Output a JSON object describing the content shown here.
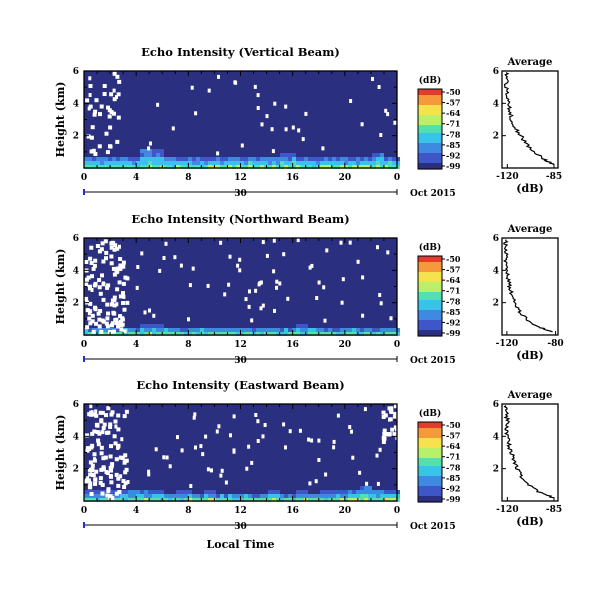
{
  "figure": {
    "panels": [
      {
        "title": "Echo Intensity (Vertical Beam)",
        "avg_title": "Average"
      },
      {
        "title": "Echo Intensity (Northward Beam)",
        "avg_title": "Average"
      },
      {
        "title": "Echo Intensity (Eastward Beam)",
        "avg_title": "Average"
      }
    ],
    "ylabel": "Height (km)",
    "xlabel": "Local Time",
    "date_label": "Oct 2015",
    "day_label": "30",
    "colorbar_unit": "(dB)",
    "avg_xlabel": "(dB)"
  },
  "chart_data": [
    {
      "type": "heatmap",
      "title": "Echo Intensity (Vertical Beam)",
      "ylabel": "Height (km)",
      "x_ticks": [
        "0",
        "4",
        "8",
        "12",
        "16",
        "20",
        "0"
      ],
      "xlim": [
        0,
        24
      ],
      "y_ticks": [
        "2",
        "4",
        "6"
      ],
      "ylim": [
        0,
        6
      ],
      "colorbar": {
        "label": "(dB)",
        "ticks": [
          "-50",
          "-57",
          "-64",
          "-71",
          "-78",
          "-85",
          "-92",
          "-99"
        ],
        "range": [
          -99,
          -50
        ]
      },
      "colorscale": [
        "#2b2f80",
        "#3f56c8",
        "#3f8ae0",
        "#38c4e8",
        "#53e0b0",
        "#b9f06a",
        "#f6e24c",
        "#f59a3a",
        "#e23c2c"
      ],
      "background_value_db": -99,
      "low_layer_top_km": [
        0.9,
        0.9,
        0.9,
        0.8,
        1.3,
        1.2,
        0.8,
        0.8,
        0.8,
        0.8,
        0.8,
        0.9,
        0.9,
        0.8,
        0.9,
        1.0,
        0.9,
        0.8,
        0.8,
        0.8,
        0.8,
        0.9,
        1.0,
        0.9
      ],
      "profile": {
        "title": "Average",
        "xlabel": "(dB)",
        "x_ticks": [
          "-120",
          "-85"
        ],
        "xlim": [
          -124,
          -82
        ],
        "ylim": [
          0,
          6
        ],
        "y_ticks": [
          "2",
          "4",
          "6"
        ],
        "height_km": [
          0.2,
          0.5,
          1.0,
          1.5,
          2.0,
          2.5,
          3.0,
          3.5,
          4.0,
          4.5,
          5.0,
          5.5,
          5.9
        ],
        "db": [
          -85,
          -92,
          -100,
          -106,
          -110,
          -114,
          -117,
          -118,
          -119,
          -120,
          -121,
          -120,
          -121
        ]
      }
    },
    {
      "type": "heatmap",
      "title": "Echo Intensity (Northward Beam)",
      "ylabel": "Height (km)",
      "x_ticks": [
        "0",
        "4",
        "8",
        "12",
        "16",
        "20",
        "0"
      ],
      "xlim": [
        0,
        24
      ],
      "y_ticks": [
        "2",
        "4",
        "6"
      ],
      "ylim": [
        0,
        6
      ],
      "colorbar": {
        "label": "(dB)",
        "ticks": [
          "-50",
          "-57",
          "-64",
          "-71",
          "-78",
          "-85",
          "-92",
          "-99"
        ],
        "range": [
          -99,
          -50
        ]
      },
      "colorscale": [
        "#2b2f80",
        "#3f56c8",
        "#3f8ae0",
        "#38c4e8",
        "#53e0b0",
        "#b9f06a",
        "#f6e24c",
        "#f59a3a",
        "#e23c2c"
      ],
      "background_value_db": -99,
      "low_layer_top_km": [
        0.6,
        0.6,
        0.6,
        0.6,
        0.7,
        0.7,
        0.6,
        0.6,
        0.6,
        0.6,
        0.6,
        0.6,
        0.6,
        0.6,
        0.6,
        0.6,
        0.7,
        0.6,
        0.6,
        0.6,
        0.6,
        0.6,
        0.6,
        0.6
      ],
      "profile": {
        "title": "Average",
        "xlabel": "(dB)",
        "x_ticks": [
          "-120",
          "-80"
        ],
        "xlim": [
          -124,
          -78
        ],
        "ylim": [
          0,
          6
        ],
        "y_ticks": [
          "2",
          "4",
          "6"
        ],
        "height_km": [
          0.2,
          0.5,
          1.0,
          1.5,
          2.0,
          2.5,
          3.0,
          3.5,
          4.0,
          4.5,
          5.0,
          5.5,
          5.9
        ],
        "db": [
          -82,
          -95,
          -104,
          -110,
          -113,
          -116,
          -118,
          -119,
          -120,
          -121,
          -120,
          -121,
          -121
        ]
      }
    },
    {
      "type": "heatmap",
      "title": "Echo Intensity (Eastward Beam)",
      "ylabel": "Height (km)",
      "xlabel": "Local Time",
      "x_ticks": [
        "0",
        "4",
        "8",
        "12",
        "16",
        "20",
        "0"
      ],
      "xlim": [
        0,
        24
      ],
      "y_ticks": [
        "2",
        "4",
        "6"
      ],
      "ylim": [
        0,
        6
      ],
      "colorbar": {
        "label": "(dB)",
        "ticks": [
          "-50",
          "-57",
          "-64",
          "-71",
          "-78",
          "-85",
          "-92",
          "-99"
        ],
        "range": [
          -99,
          -50
        ]
      },
      "colorscale": [
        "#2b2f80",
        "#3f56c8",
        "#3f8ae0",
        "#38c4e8",
        "#53e0b0",
        "#b9f06a",
        "#f6e24c",
        "#f59a3a",
        "#e23c2c"
      ],
      "background_value_db": -99,
      "low_layer_top_km": [
        0.7,
        0.7,
        0.7,
        0.8,
        0.8,
        0.7,
        0.6,
        0.7,
        0.6,
        0.7,
        0.6,
        0.6,
        0.6,
        0.6,
        0.7,
        0.6,
        0.7,
        0.6,
        0.7,
        0.7,
        0.9,
        1.0,
        0.8,
        0.7
      ],
      "profile": {
        "title": "Average",
        "xlabel": "(dB)",
        "x_ticks": [
          "-120",
          "-85"
        ],
        "xlim": [
          -124,
          -82
        ],
        "ylim": [
          0,
          6
        ],
        "y_ticks": [
          "2",
          "4",
          "6"
        ],
        "height_km": [
          0.2,
          0.5,
          1.0,
          1.5,
          2.0,
          2.5,
          3.0,
          3.5,
          4.0,
          4.5,
          5.0,
          5.5,
          5.9
        ],
        "db": [
          -85,
          -95,
          -104,
          -109,
          -113,
          -115,
          -117,
          -119,
          -120,
          -121,
          -120,
          -121,
          -121
        ]
      }
    }
  ]
}
